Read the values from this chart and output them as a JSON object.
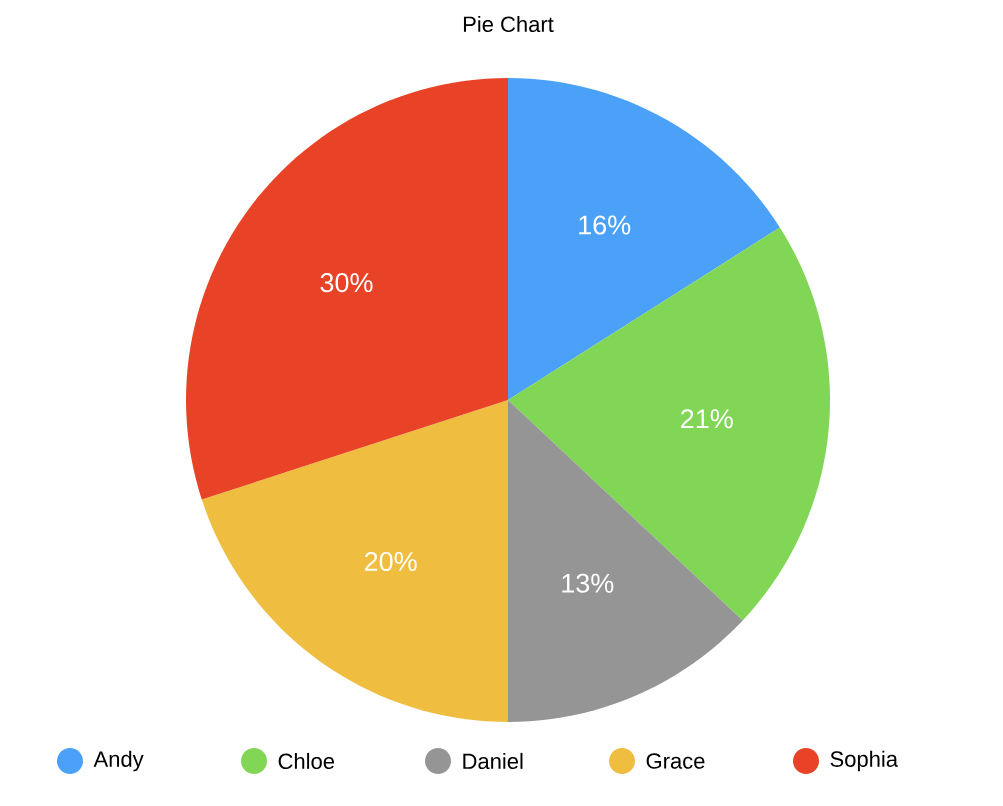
{
  "chart_data": {
    "type": "pie",
    "title": "Pie Chart",
    "categories": [
      "Andy",
      "Chloe",
      "Daniel",
      "Grace",
      "Sophia"
    ],
    "values": [
      16,
      21,
      13,
      20,
      30
    ],
    "value_labels": [
      "16%",
      "21%",
      "13%",
      "20%",
      "30%"
    ],
    "colors": [
      "#4aa1f7",
      "#82d655",
      "#959595",
      "#efbe41",
      "#e84326"
    ],
    "legend": "bottom"
  }
}
